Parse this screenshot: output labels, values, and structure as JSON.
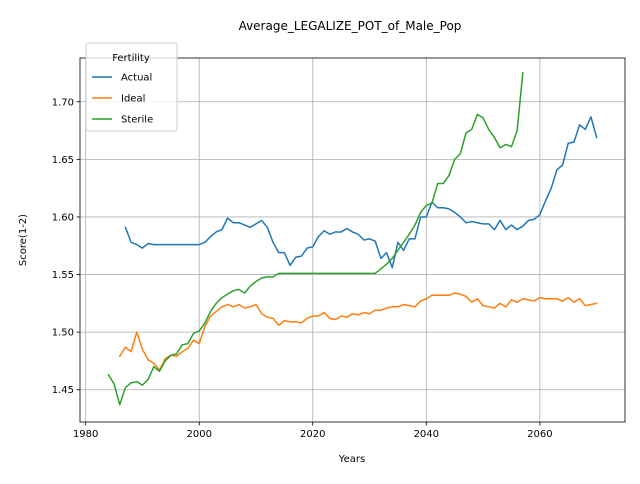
{
  "chart_data": {
    "type": "line",
    "title": "Average_LEGALIZE_POT_of_Male_Pop",
    "xlabel": "Years",
    "ylabel": "Score(1-2)",
    "xlim": [
      1979,
      2075
    ],
    "ylim": [
      1.422,
      1.738
    ],
    "xticks": [
      1980,
      2000,
      2020,
      2040,
      2060
    ],
    "yticks": [
      1.45,
      1.5,
      1.55,
      1.6,
      1.65,
      1.7
    ],
    "ytick_labels": [
      "1.45",
      "1.50",
      "1.55",
      "1.60",
      "1.65",
      "1.70"
    ],
    "grid": true,
    "legend": {
      "title": "Fertility",
      "placement": "top-left"
    },
    "series": [
      {
        "name": "Actual",
        "color": "#1f77b4",
        "x": [
          1987,
          1988,
          1989,
          1990,
          1991,
          1992,
          1993,
          1994,
          1995,
          1996,
          1997,
          1998,
          1999,
          2000,
          2001,
          2002,
          2003,
          2004,
          2005,
          2006,
          2007,
          2008,
          2009,
          2010,
          2011,
          2012,
          2013,
          2014,
          2015,
          2016,
          2017,
          2018,
          2019,
          2020,
          2021,
          2022,
          2023,
          2024,
          2025,
          2026,
          2027,
          2028,
          2029,
          2030,
          2031,
          2032,
          2033,
          2034,
          2035,
          2036,
          2037,
          2038,
          2039,
          2040,
          2041,
          2042,
          2043,
          2044,
          2045,
          2046,
          2047,
          2048,
          2049,
          2050,
          2051,
          2052,
          2053,
          2054,
          2055,
          2056,
          2057,
          2058,
          2059,
          2060,
          2061,
          2062,
          2063,
          2064,
          2065,
          2066,
          2067,
          2068,
          2069,
          2070
        ],
        "values": [
          1.591,
          1.578,
          1.576,
          1.573,
          1.577,
          1.576,
          1.576,
          1.576,
          1.576,
          1.576,
          1.576,
          1.576,
          1.576,
          1.576,
          1.578,
          1.583,
          1.587,
          1.589,
          1.599,
          1.595,
          1.595,
          1.593,
          1.591,
          1.594,
          1.597,
          1.591,
          1.578,
          1.569,
          1.569,
          1.558,
          1.565,
          1.566,
          1.573,
          1.574,
          1.583,
          1.588,
          1.585,
          1.587,
          1.587,
          1.59,
          1.587,
          1.585,
          1.58,
          1.581,
          1.579,
          1.564,
          1.569,
          1.556,
          1.578,
          1.571,
          1.581,
          1.581,
          1.6,
          1.6,
          1.613,
          1.608,
          1.608,
          1.607,
          1.604,
          1.6,
          1.595,
          1.596,
          1.595,
          1.594,
          1.594,
          1.589,
          1.597,
          1.589,
          1.593,
          1.589,
          1.592,
          1.597,
          1.598,
          1.602,
          1.614,
          1.625,
          1.641,
          1.645,
          1.664,
          1.665,
          1.68,
          1.676,
          1.687,
          1.669
        ]
      },
      {
        "name": "Ideal",
        "color": "#ff7f0e",
        "x": [
          1986,
          1987,
          1988,
          1989,
          1990,
          1991,
          1992,
          1993,
          1994,
          1995,
          1996,
          1997,
          1998,
          1999,
          2000,
          2001,
          2002,
          2003,
          2004,
          2005,
          2006,
          2007,
          2008,
          2009,
          2010,
          2011,
          2012,
          2013,
          2014,
          2015,
          2016,
          2017,
          2018,
          2019,
          2020,
          2021,
          2022,
          2023,
          2024,
          2025,
          2026,
          2027,
          2028,
          2029,
          2030,
          2031,
          2032,
          2033,
          2034,
          2035,
          2036,
          2037,
          2038,
          2039,
          2040,
          2041,
          2042,
          2043,
          2044,
          2045,
          2046,
          2047,
          2048,
          2049,
          2050,
          2051,
          2052,
          2053,
          2054,
          2055,
          2056,
          2057,
          2058,
          2059,
          2060,
          2061,
          2062,
          2063,
          2064,
          2065,
          2066,
          2067,
          2068,
          2069,
          2070
        ],
        "values": [
          1.479,
          1.487,
          1.483,
          1.5,
          1.485,
          1.476,
          1.473,
          1.467,
          1.477,
          1.48,
          1.479,
          1.483,
          1.486,
          1.493,
          1.49,
          1.505,
          1.514,
          1.518,
          1.522,
          1.524,
          1.522,
          1.524,
          1.521,
          1.522,
          1.524,
          1.516,
          1.513,
          1.512,
          1.506,
          1.51,
          1.509,
          1.509,
          1.508,
          1.512,
          1.514,
          1.514,
          1.517,
          1.512,
          1.511,
          1.514,
          1.513,
          1.516,
          1.515,
          1.517,
          1.516,
          1.519,
          1.519,
          1.521,
          1.522,
          1.522,
          1.524,
          1.523,
          1.522,
          1.527,
          1.529,
          1.532,
          1.532,
          1.532,
          1.532,
          1.534,
          1.533,
          1.531,
          1.526,
          1.529,
          1.523,
          1.522,
          1.521,
          1.525,
          1.522,
          1.528,
          1.526,
          1.529,
          1.528,
          1.527,
          1.53,
          1.529,
          1.529,
          1.529,
          1.527,
          1.53,
          1.526,
          1.529,
          1.523,
          1.524,
          1.525
        ]
      },
      {
        "name": "Sterile",
        "color": "#2ca02c",
        "x": [
          1984,
          1985,
          1986,
          1987,
          1988,
          1989,
          1990,
          1991,
          1992,
          1993,
          1994,
          1995,
          1996,
          1997,
          1998,
          1999,
          2000,
          2001,
          2002,
          2003,
          2004,
          2005,
          2006,
          2007,
          2008,
          2009,
          2010,
          2011,
          2012,
          2013,
          2014,
          2015,
          2016,
          2017,
          2018,
          2019,
          2020,
          2021,
          2022,
          2023,
          2024,
          2025,
          2026,
          2027,
          2028,
          2029,
          2030,
          2031,
          2032,
          2033,
          2034,
          2035,
          2036,
          2037,
          2038,
          2039,
          2040,
          2041,
          2042,
          2043,
          2044,
          2045,
          2046,
          2047,
          2048,
          2049,
          2050,
          2051,
          2052,
          2053,
          2054,
          2055,
          2056,
          2057
        ],
        "values": [
          1.463,
          1.455,
          1.437,
          1.452,
          1.456,
          1.457,
          1.454,
          1.459,
          1.47,
          1.466,
          1.475,
          1.48,
          1.481,
          1.489,
          1.49,
          1.499,
          1.501,
          1.508,
          1.518,
          1.525,
          1.53,
          1.533,
          1.536,
          1.537,
          1.534,
          1.54,
          1.544,
          1.547,
          1.548,
          1.548,
          1.551,
          1.551,
          1.551,
          1.551,
          1.551,
          1.551,
          1.551,
          1.551,
          1.551,
          1.551,
          1.551,
          1.551,
          1.551,
          1.551,
          1.551,
          1.551,
          1.551,
          1.551,
          1.555,
          1.559,
          1.564,
          1.571,
          1.578,
          1.585,
          1.593,
          1.604,
          1.61,
          1.612,
          1.629,
          1.629,
          1.636,
          1.65,
          1.655,
          1.673,
          1.676,
          1.689,
          1.686,
          1.676,
          1.669,
          1.66,
          1.663,
          1.661,
          1.675,
          1.725
        ]
      }
    ]
  }
}
